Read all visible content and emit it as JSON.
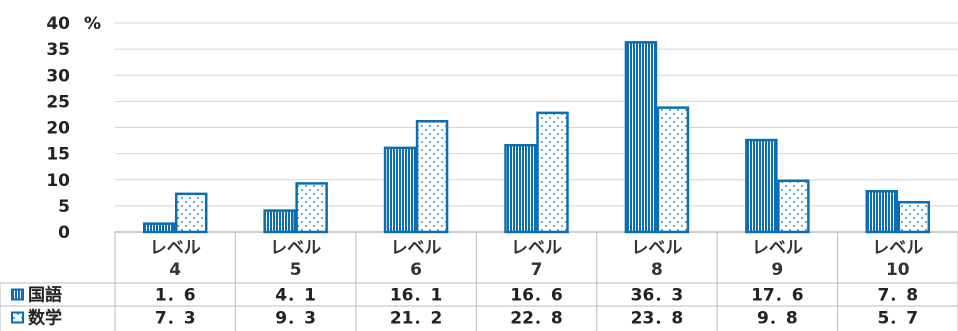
{
  "chart_data": {
    "type": "bar",
    "y_unit_label": "%",
    "ylim": [
      0,
      40
    ],
    "yticks": [
      0,
      5,
      10,
      15,
      20,
      25,
      30,
      35,
      40
    ],
    "grid": true,
    "categories": [
      {
        "line1": "レベル",
        "line2": "4"
      },
      {
        "line1": "レベル",
        "line2": "5"
      },
      {
        "line1": "レベル",
        "line2": "6"
      },
      {
        "line1": "レベル",
        "line2": "7"
      },
      {
        "line1": "レベル",
        "line2": "8"
      },
      {
        "line1": "レベル",
        "line2": "9"
      },
      {
        "line1": "レベル",
        "line2": "10"
      }
    ],
    "series": [
      {
        "name": "国語",
        "pattern": "vertical-stripes",
        "values": [
          1.6,
          4.1,
          16.1,
          16.6,
          36.3,
          17.6,
          7.8
        ],
        "labels": [
          "1．6",
          "4．1",
          "16．1",
          "16．6",
          "36．3",
          "17．6",
          "7．8"
        ]
      },
      {
        "name": "数学",
        "pattern": "dots",
        "values": [
          7.3,
          9.3,
          21.2,
          22.8,
          23.8,
          9.8,
          5.7
        ],
        "labels": [
          "7．3",
          "9．3",
          "21．2",
          "22．8",
          "23．8",
          "9．8",
          "5．7"
        ]
      }
    ],
    "data_table": true,
    "colors": {
      "primary": "#0a6eb4",
      "grid": "#d4d4d4",
      "border": "#bbbbbb"
    }
  }
}
